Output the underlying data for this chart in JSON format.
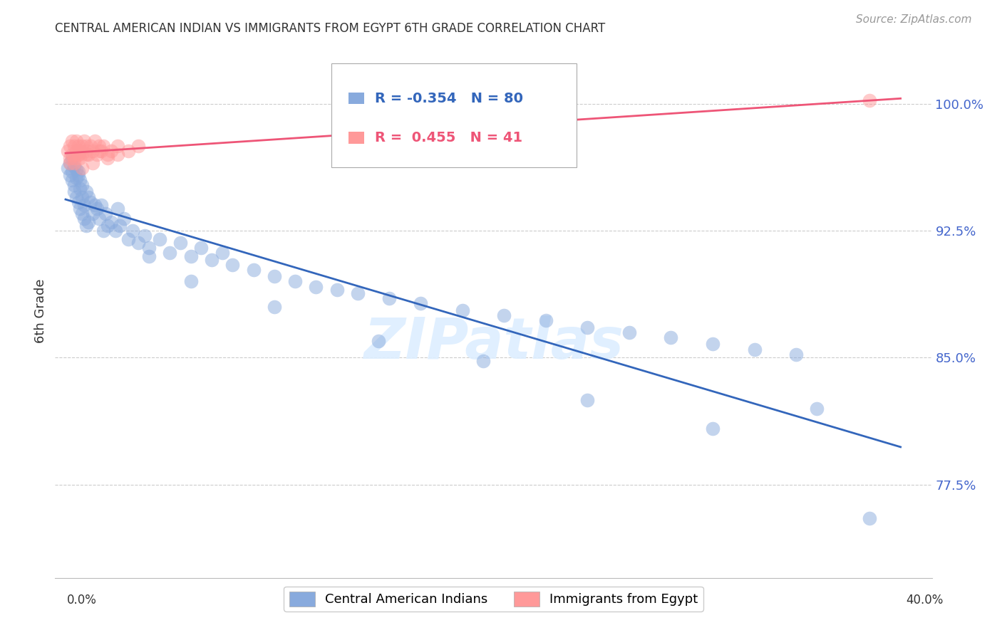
{
  "title": "CENTRAL AMERICAN INDIAN VS IMMIGRANTS FROM EGYPT 6TH GRADE CORRELATION CHART",
  "source": "Source: ZipAtlas.com",
  "ylabel": "6th Grade",
  "ylim": [
    72.0,
    103.5
  ],
  "xlim": [
    -0.005,
    0.415
  ],
  "blue_R": -0.354,
  "blue_N": 80,
  "pink_R": 0.455,
  "pink_N": 41,
  "legend_label_blue": "Central American Indians",
  "legend_label_pink": "Immigrants from Egypt",
  "blue_color": "#88AADD",
  "pink_color": "#FF9999",
  "blue_line_color": "#3366BB",
  "pink_line_color": "#EE5577",
  "watermark_text": "ZIPatlas",
  "ytick_positions": [
    77.5,
    85.0,
    92.5,
    100.0
  ],
  "ytick_labels": [
    "77.5%",
    "85.0%",
    "92.5%",
    "100.0%"
  ],
  "blue_x": [
    0.001,
    0.002,
    0.002,
    0.003,
    0.003,
    0.003,
    0.004,
    0.004,
    0.004,
    0.005,
    0.005,
    0.005,
    0.006,
    0.006,
    0.006,
    0.007,
    0.007,
    0.007,
    0.008,
    0.008,
    0.008,
    0.009,
    0.009,
    0.01,
    0.01,
    0.011,
    0.011,
    0.012,
    0.013,
    0.014,
    0.015,
    0.016,
    0.017,
    0.018,
    0.019,
    0.02,
    0.022,
    0.024,
    0.026,
    0.028,
    0.03,
    0.032,
    0.035,
    0.038,
    0.04,
    0.045,
    0.05,
    0.055,
    0.06,
    0.065,
    0.07,
    0.075,
    0.08,
    0.09,
    0.1,
    0.11,
    0.12,
    0.13,
    0.14,
    0.155,
    0.17,
    0.19,
    0.21,
    0.23,
    0.25,
    0.27,
    0.29,
    0.31,
    0.33,
    0.35,
    0.025,
    0.04,
    0.06,
    0.1,
    0.15,
    0.2,
    0.25,
    0.31,
    0.36,
    0.385
  ],
  "blue_y": [
    96.2,
    95.8,
    96.5,
    96.0,
    95.5,
    96.8,
    95.2,
    96.3,
    94.8,
    95.6,
    96.1,
    94.5,
    95.8,
    94.2,
    96.0,
    95.0,
    93.8,
    95.5,
    94.5,
    93.5,
    95.2,
    94.0,
    93.2,
    94.8,
    92.8,
    94.5,
    93.0,
    94.2,
    93.5,
    94.0,
    93.8,
    93.2,
    94.0,
    92.5,
    93.5,
    92.8,
    93.0,
    92.5,
    92.8,
    93.2,
    92.0,
    92.5,
    91.8,
    92.2,
    91.5,
    92.0,
    91.2,
    91.8,
    91.0,
    91.5,
    90.8,
    91.2,
    90.5,
    90.2,
    89.8,
    89.5,
    89.2,
    89.0,
    88.8,
    88.5,
    88.2,
    87.8,
    87.5,
    87.2,
    86.8,
    86.5,
    86.2,
    85.8,
    85.5,
    85.2,
    93.8,
    91.0,
    89.5,
    88.0,
    86.0,
    84.8,
    82.5,
    80.8,
    82.0,
    75.5
  ],
  "pink_x": [
    0.001,
    0.002,
    0.002,
    0.003,
    0.003,
    0.004,
    0.004,
    0.005,
    0.005,
    0.006,
    0.006,
    0.007,
    0.007,
    0.008,
    0.008,
    0.009,
    0.01,
    0.01,
    0.011,
    0.012,
    0.013,
    0.014,
    0.015,
    0.016,
    0.017,
    0.018,
    0.02,
    0.022,
    0.025,
    0.03,
    0.002,
    0.004,
    0.006,
    0.008,
    0.01,
    0.013,
    0.016,
    0.02,
    0.025,
    0.035,
    0.385
  ],
  "pink_y": [
    97.2,
    97.5,
    96.8,
    97.8,
    97.0,
    97.5,
    96.5,
    97.2,
    97.8,
    97.0,
    97.5,
    96.8,
    97.2,
    97.5,
    97.0,
    97.8,
    97.2,
    97.5,
    97.0,
    97.5,
    97.2,
    97.8,
    97.0,
    97.5,
    97.2,
    97.5,
    97.0,
    97.2,
    97.5,
    97.2,
    96.5,
    96.8,
    97.0,
    96.2,
    97.0,
    96.5,
    97.2,
    96.8,
    97.0,
    97.5,
    100.2
  ]
}
